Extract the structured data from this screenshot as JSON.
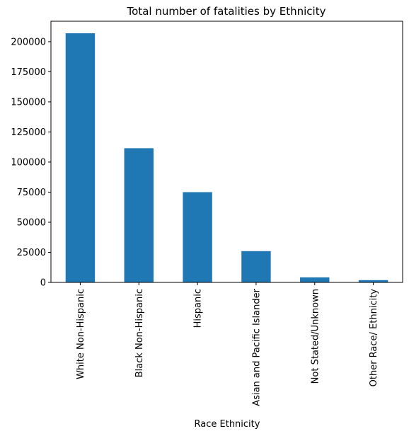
{
  "chart_data": {
    "type": "bar",
    "title": "Total number of fatalities by Ethnicity",
    "xlabel": "Race Ethnicity",
    "ylabel": "",
    "categories": [
      "White Non-Hispanic",
      "Black Non-Hispanic",
      "Hispanic",
      "Asian and Pacific Islander",
      "Not Stated/Unknown",
      "Other Race/ Ethnicity"
    ],
    "values": [
      207000,
      111500,
      75000,
      26000,
      4200,
      1900
    ],
    "ylim": [
      0,
      217000
    ],
    "yticks": [
      0,
      25000,
      50000,
      75000,
      100000,
      125000,
      150000,
      175000,
      200000
    ],
    "grid": false,
    "legend": "none",
    "bar_color": "#1f77b4"
  }
}
